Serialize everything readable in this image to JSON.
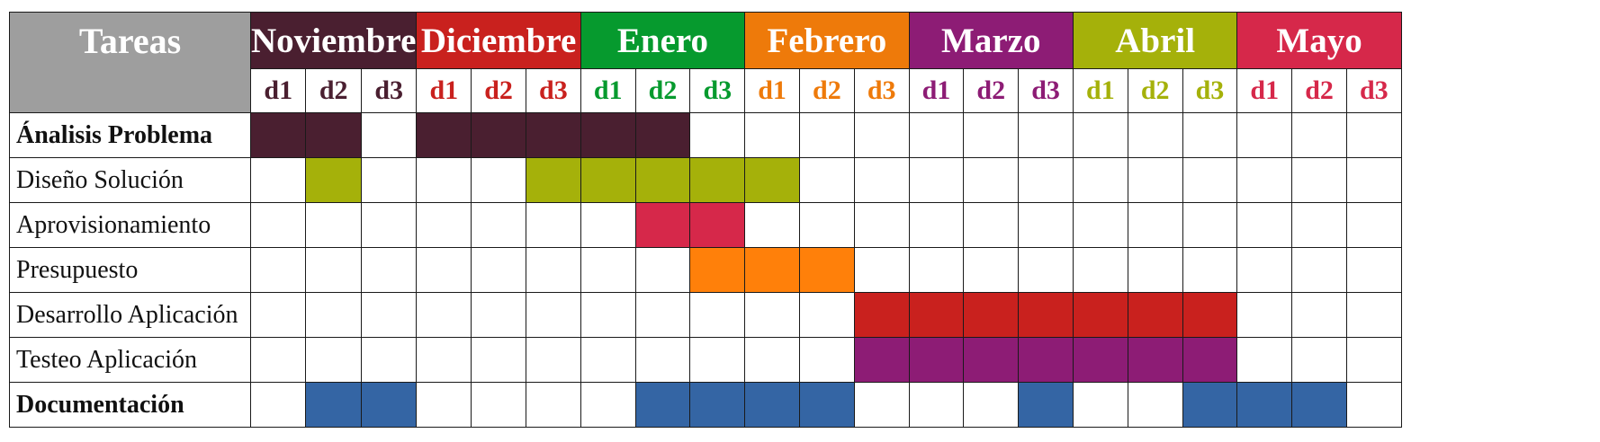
{
  "chart_data": {
    "type": "table",
    "title": "",
    "header_label": "Tareas",
    "months": [
      {
        "name": "Noviembre",
        "color": "#4a1f30"
      },
      {
        "name": "Diciembre",
        "color": "#c9211e"
      },
      {
        "name": "Enero",
        "color": "#069a2e"
      },
      {
        "name": "Febrero",
        "color": "#ee7a0a"
      },
      {
        "name": "Marzo",
        "color": "#8d1c75"
      },
      {
        "name": "Abril",
        "color": "#a5b10a"
      },
      {
        "name": "Mayo",
        "color": "#d6284a"
      }
    ],
    "decades": [
      "d1",
      "d2",
      "d3"
    ],
    "tasks": [
      {
        "name": "Ánalisis Problema",
        "bold": true,
        "color": "#4a1f30",
        "periods": [
          0,
          1,
          3,
          4,
          5,
          6,
          7
        ]
      },
      {
        "name": "Diseño Solución",
        "bold": false,
        "color": "#a5b10a",
        "periods": [
          1,
          5,
          6,
          7,
          8,
          9
        ]
      },
      {
        "name": "Aprovisionamiento",
        "bold": false,
        "color": "#d6284a",
        "periods": [
          7,
          8
        ]
      },
      {
        "name": "Presupuesto",
        "bold": false,
        "color": "#ff800a",
        "periods": [
          8,
          9,
          10
        ]
      },
      {
        "name": "Desarrollo Aplicación",
        "bold": false,
        "color": "#c9211e",
        "periods": [
          11,
          12,
          13,
          14,
          15,
          16,
          17
        ]
      },
      {
        "name": "Testeo Aplicación",
        "bold": false,
        "color": "#8d1c75",
        "periods": [
          11,
          12,
          13,
          14,
          15,
          16,
          17
        ]
      },
      {
        "name": "Documentación",
        "bold": true,
        "color": "#3465a4",
        "periods": [
          1,
          2,
          7,
          8,
          9,
          10,
          14,
          17,
          18,
          19
        ]
      }
    ]
  }
}
